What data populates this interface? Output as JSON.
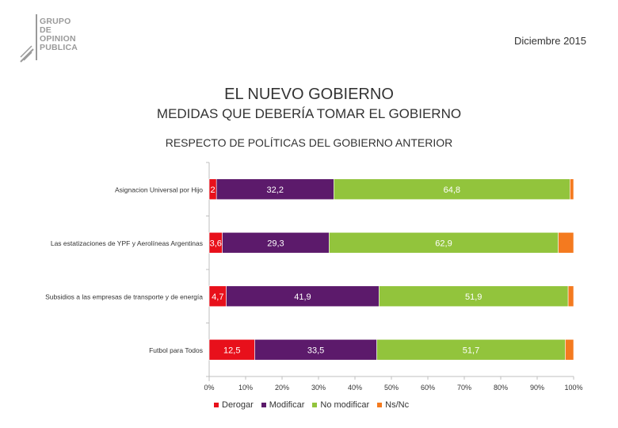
{
  "header": {
    "logo_lines": [
      "GRUPO",
      "DE",
      "OPINION",
      "PUBLICA"
    ],
    "date": "Diciembre 2015"
  },
  "titles": {
    "title": "EL NUEVO GOBIERNO",
    "subtitle": "MEDIDAS QUE DEBERÍA TOMAR EL GOBIERNO",
    "subtitle2": "RESPECTO DE POLÍTICAS DEL GOBIERNO ANTERIOR"
  },
  "chart_data": {
    "type": "bar",
    "orientation": "horizontal",
    "stacked": "percent",
    "categories": [
      "Asignacion Universal por Hijo",
      "Las estatizaciones de YPF y Aerolíneas Argentinas",
      "Subsidios a las empresas de transporte y de energía",
      "Futbol para Todos"
    ],
    "series": [
      {
        "name": "Derogar",
        "color": "#e8101b",
        "values": [
          2,
          3.6,
          4.7,
          12.5
        ],
        "labels": [
          "2",
          "3,6",
          "4,7",
          "12,5"
        ]
      },
      {
        "name": "Modificar",
        "color": "#5c1a6b",
        "values": [
          32.2,
          29.3,
          41.9,
          33.5
        ],
        "labels": [
          "32,2",
          "29,3",
          "41,9",
          "33,5"
        ]
      },
      {
        "name": "No modificar",
        "color": "#92c43c",
        "values": [
          64.8,
          62.9,
          51.9,
          51.7
        ],
        "labels": [
          "64,8",
          "62,9",
          "51,9",
          "51,7"
        ]
      },
      {
        "name": "Ns/Nc",
        "color": "#f47a1f",
        "values": [
          1,
          4.2,
          1.5,
          2.3
        ],
        "labels": [
          "",
          "",
          "",
          ""
        ]
      }
    ],
    "xlim": [
      0,
      100
    ],
    "xticks": [
      "0%",
      "10%",
      "20%",
      "30%",
      "40%",
      "50%",
      "60%",
      "70%",
      "80%",
      "90%",
      "100%"
    ],
    "legend": "bottom"
  }
}
